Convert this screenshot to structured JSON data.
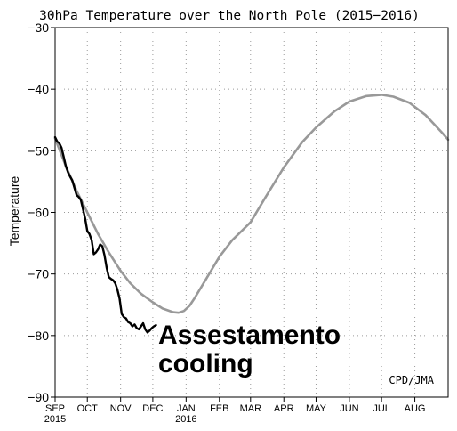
{
  "chart_data": {
    "type": "line",
    "title": "30hPa Temperature over the North Pole (2015−2016)",
    "ylabel": "Temperature",
    "xlabel": "",
    "ylim": [
      -90,
      -30
    ],
    "xlim": [
      0,
      366
    ],
    "grid": true,
    "yticks": [
      {
        "value": -30,
        "label": "−30"
      },
      {
        "value": -40,
        "label": "−40"
      },
      {
        "value": -50,
        "label": "−50"
      },
      {
        "value": -60,
        "label": "−60"
      },
      {
        "value": -70,
        "label": "−70"
      },
      {
        "value": -80,
        "label": "−80"
      },
      {
        "value": -90,
        "label": "−90"
      }
    ],
    "xticks": [
      {
        "x": 0,
        "label": "SEP",
        "sub": "2015"
      },
      {
        "x": 30,
        "label": "OCT",
        "sub": ""
      },
      {
        "x": 61,
        "label": "NOV",
        "sub": ""
      },
      {
        "x": 91,
        "label": "DEC",
        "sub": ""
      },
      {
        "x": 122,
        "label": "JAN",
        "sub": "2016"
      },
      {
        "x": 153,
        "label": "FEB",
        "sub": ""
      },
      {
        "x": 182,
        "label": "MAR",
        "sub": ""
      },
      {
        "x": 213,
        "label": "APR",
        "sub": ""
      },
      {
        "x": 243,
        "label": "MAY",
        "sub": ""
      },
      {
        "x": 274,
        "label": "JUN",
        "sub": ""
      },
      {
        "x": 304,
        "label": "JUL",
        "sub": ""
      },
      {
        "x": 335,
        "label": "AUG",
        "sub": ""
      }
    ],
    "series": [
      {
        "color": "#999999",
        "x": [
          0,
          10,
          20,
          30,
          40,
          50,
          61,
          70,
          80,
          91,
          100,
          110,
          115,
          120,
          125,
          130,
          140,
          153,
          165,
          182,
          195,
          213,
          230,
          243,
          260,
          274,
          290,
          304,
          315,
          330,
          345,
          360,
          366
        ],
        "y": [
          -48,
          -52.5,
          -56.5,
          -60,
          -63.5,
          -66.5,
          -69.5,
          -71.5,
          -73.2,
          -74.6,
          -75.6,
          -76.2,
          -76.3,
          -76.0,
          -75.2,
          -73.9,
          -71.0,
          -67.2,
          -64.5,
          -61.6,
          -57.8,
          -52.7,
          -48.6,
          -46.2,
          -43.6,
          -42.0,
          -41.1,
          -40.9,
          -41.2,
          -42.2,
          -44.2,
          -47.0,
          -48.2
        ]
      },
      {
        "color": "#000000",
        "x": [
          0,
          2,
          4,
          6,
          8,
          10,
          12,
          14,
          16,
          18,
          20,
          22,
          24,
          26,
          28,
          30,
          32,
          34,
          36,
          38,
          40,
          42,
          44,
          46,
          48,
          50,
          52,
          54,
          56,
          58,
          60,
          62,
          64,
          66,
          68,
          70,
          72,
          74,
          76,
          78,
          80,
          82,
          84,
          86,
          88,
          90,
          92,
          94
        ],
        "y": [
          -47.8,
          -48.5,
          -48.8,
          -49.5,
          -51.0,
          -52.5,
          -53.5,
          -54.2,
          -54.8,
          -56.0,
          -57.2,
          -57.5,
          -58.0,
          -59.5,
          -61.0,
          -63.0,
          -63.5,
          -64.5,
          -66.8,
          -66.5,
          -66.0,
          -65.2,
          -65.5,
          -67.0,
          -69.0,
          -70.5,
          -70.8,
          -71.0,
          -71.5,
          -72.5,
          -74.0,
          -76.5,
          -77.0,
          -77.2,
          -77.8,
          -78.0,
          -78.5,
          -78.2,
          -78.8,
          -79.0,
          -78.5,
          -78.0,
          -79.0,
          -79.5,
          -79.2,
          -78.8,
          -78.5,
          -78.3
        ]
      }
    ],
    "annotations": [
      {
        "text": "Assestamento",
        "x": 95,
        "y": -79.7
      },
      {
        "text": "cooling",
        "x": 95,
        "y": -84.3
      }
    ],
    "credit": "CPD/JMA"
  }
}
